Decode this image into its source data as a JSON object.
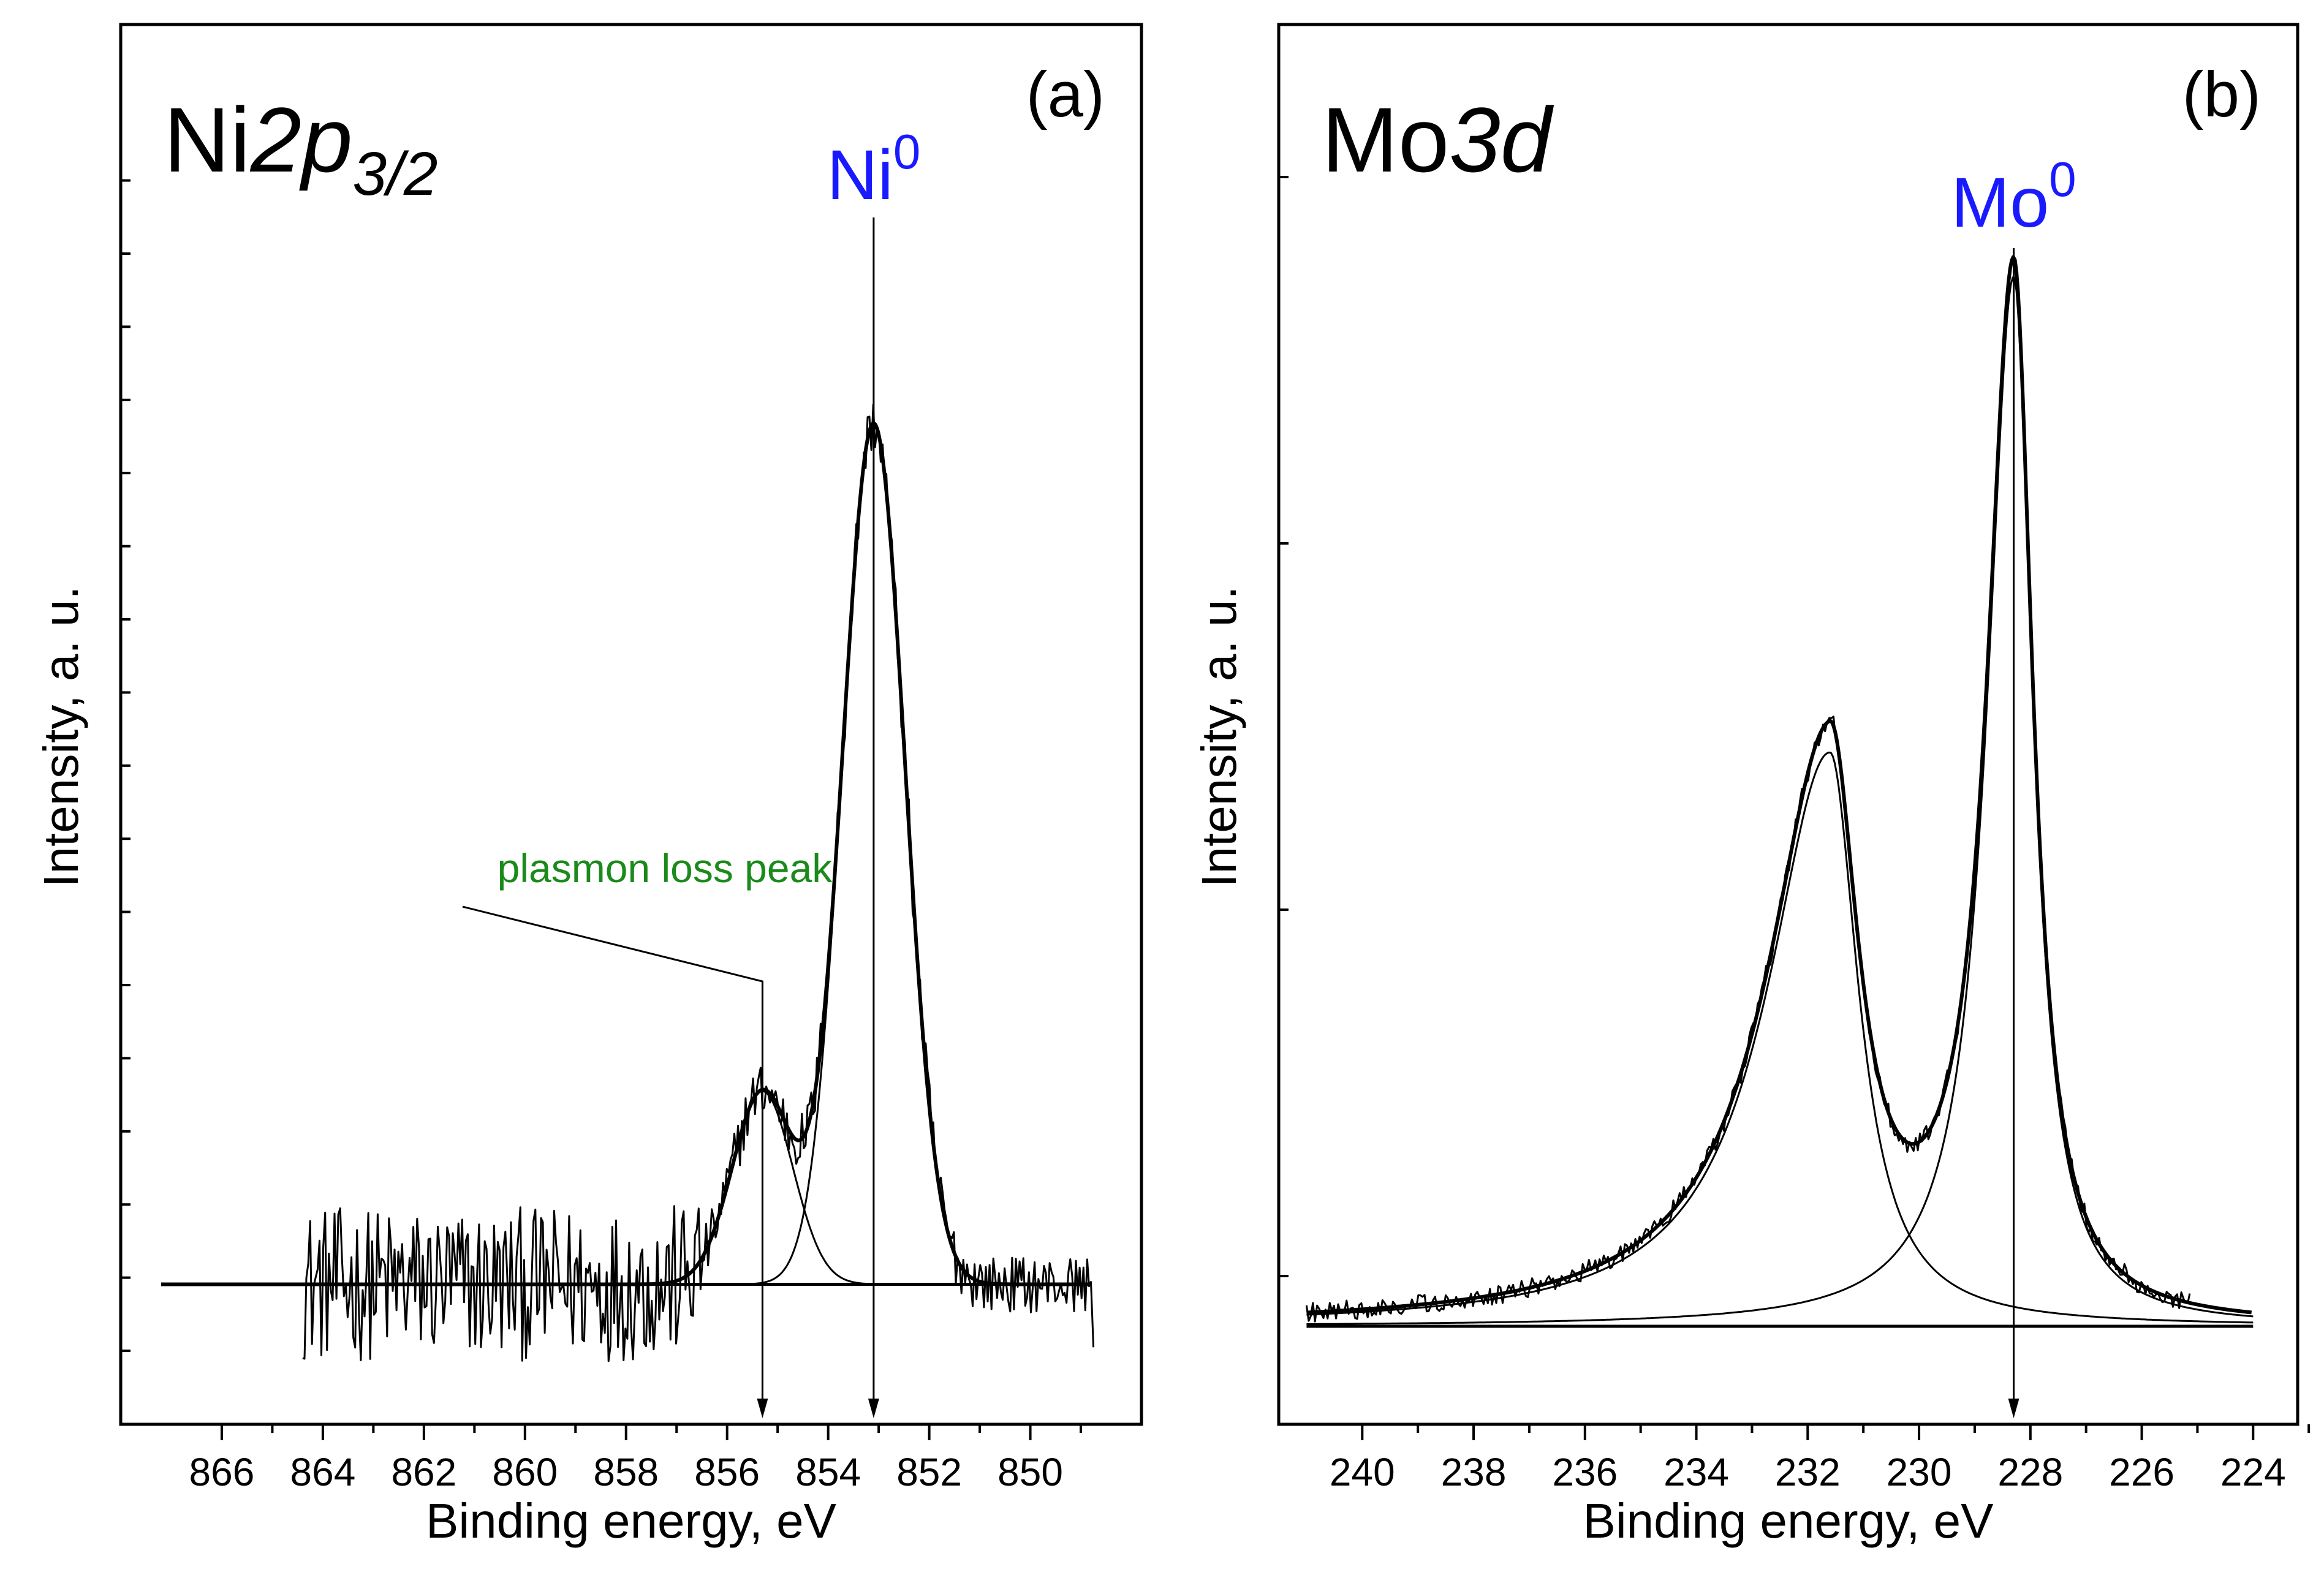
{
  "colors": {
    "species": "#1a1aff",
    "annotation": "#1a8a1a",
    "ink": "#000000"
  },
  "chart_data": [
    {
      "type": "line",
      "panel": "(a)",
      "element": "Ni",
      "orbital": "2p",
      "subscript": "3/2",
      "xlabel": "Binding energy, eV",
      "ylabel": "Intensity, a. u.",
      "xlim": [
        868,
        847.8
      ],
      "ylim": [
        0,
        1
      ],
      "xticks": [
        "866",
        "864",
        "862",
        "860",
        "858",
        "856",
        "854",
        "852",
        "850"
      ],
      "xtick_values": [
        866,
        864,
        862,
        860,
        858,
        856,
        854,
        852,
        850
      ],
      "baseline": 0.1,
      "series": [
        {
          "name": "measured spectrum (noisy)",
          "kind": "noise",
          "x_start": 864.4,
          "x_end": 848.8
        },
        {
          "name": "Ni0 component",
          "kind": "gauss",
          "center": 853.1,
          "amplitude": 0.615,
          "width": 0.62
        },
        {
          "name": "plasmon loss component",
          "kind": "gauss",
          "center": 855.3,
          "amplitude": 0.138,
          "width": 0.6
        },
        {
          "name": "envelope",
          "kind": "sum"
        }
      ],
      "annotations": [
        {
          "text": "Ni",
          "sup": "0",
          "x": 853.1,
          "color": "species"
        },
        {
          "text": "plasmon loss peak",
          "x": 855.3,
          "color": "annotation"
        }
      ]
    },
    {
      "type": "line",
      "panel": "(b)",
      "element": "Mo",
      "orbital": "3d",
      "xlabel": "Binding energy, eV",
      "ylabel": "Intensity, a. u.",
      "xlim": [
        241.5,
        223.2
      ],
      "ylim": [
        0,
        1
      ],
      "xticks": [
        "240",
        "238",
        "236",
        "234",
        "232",
        "230",
        "228",
        "226",
        "224"
      ],
      "xtick_values": [
        240,
        238,
        236,
        234,
        232,
        230,
        228,
        226,
        224
      ],
      "baseline": 0.07,
      "series": [
        {
          "name": "measured spectrum (noisy)",
          "kind": "noise",
          "x_start": 241,
          "x_end": 225.1
        },
        {
          "name": "Mo 3d5/2 component",
          "kind": "asym",
          "center": 228.3,
          "amplitude": 0.75,
          "width_left": 0.58,
          "width_right": 0.42
        },
        {
          "name": "Mo 3d3/2 component",
          "kind": "asym",
          "center": 231.6,
          "amplitude": 0.41,
          "width_left": 1.35,
          "width_right": 0.62
        },
        {
          "name": "envelope",
          "kind": "sum"
        }
      ],
      "annotations": [
        {
          "text": "Mo",
          "sup": "0",
          "x": 228.3,
          "color": "species"
        }
      ]
    }
  ]
}
